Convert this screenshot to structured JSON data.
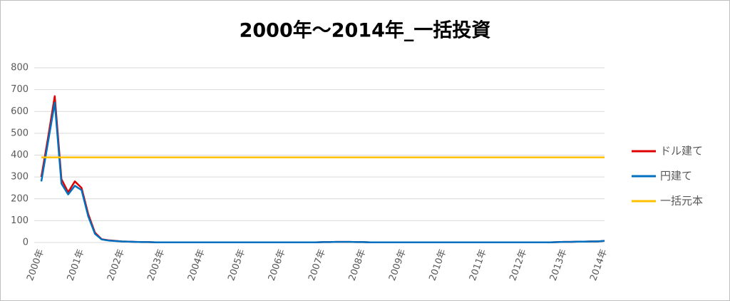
{
  "chart_data": {
    "type": "line",
    "title": "2000年～2014年_一括投資",
    "categories": [
      "2000年",
      null,
      null,
      null,
      null,
      null,
      "2001年",
      null,
      null,
      null,
      null,
      null,
      "2002年",
      null,
      null,
      null,
      null,
      null,
      "2003年",
      null,
      null,
      null,
      null,
      null,
      "2004年",
      null,
      null,
      null,
      null,
      null,
      "2005年",
      null,
      null,
      null,
      null,
      null,
      "2006年",
      null,
      null,
      null,
      null,
      null,
      "2007年",
      null,
      null,
      null,
      null,
      null,
      "2008年",
      null,
      null,
      null,
      null,
      null,
      "2009年",
      null,
      null,
      null,
      null,
      null,
      "2010年",
      null,
      null,
      null,
      null,
      null,
      "2011年",
      null,
      null,
      null,
      null,
      null,
      "2012年",
      null,
      null,
      null,
      null,
      null,
      "2013年",
      null,
      null,
      null,
      null,
      null,
      "2014年"
    ],
    "series": [
      {
        "name": "ドル建て",
        "color": "#e00000",
        "values": [
          300,
          480,
          670,
          290,
          230,
          280,
          250,
          130,
          45,
          15,
          10,
          8,
          5,
          4,
          3,
          2,
          2,
          1,
          1,
          1,
          1,
          1,
          1,
          1,
          1,
          1,
          1,
          1,
          1,
          1,
          1,
          1,
          1,
          1,
          1,
          1,
          1,
          1,
          1,
          1,
          1,
          1,
          2,
          2,
          3,
          3,
          3,
          2,
          2,
          1,
          1,
          1,
          1,
          1,
          1,
          1,
          1,
          1,
          1,
          1,
          1,
          1,
          1,
          1,
          1,
          1,
          1,
          1,
          1,
          1,
          1,
          1,
          1,
          1,
          1,
          1,
          1,
          2,
          3,
          3,
          4,
          4,
          5,
          5,
          8
        ]
      },
      {
        "name": "円建て",
        "color": "#0070c0",
        "values": [
          280,
          460,
          640,
          270,
          220,
          260,
          240,
          120,
          40,
          14,
          9,
          7,
          5,
          4,
          3,
          2,
          2,
          1,
          1,
          1,
          1,
          1,
          1,
          1,
          1,
          1,
          1,
          1,
          1,
          1,
          1,
          1,
          1,
          1,
          1,
          1,
          1,
          1,
          1,
          1,
          1,
          1,
          2,
          2,
          3,
          3,
          3,
          2,
          2,
          1,
          1,
          1,
          1,
          1,
          1,
          1,
          1,
          1,
          1,
          1,
          1,
          1,
          1,
          1,
          1,
          1,
          1,
          1,
          1,
          1,
          1,
          1,
          1,
          1,
          1,
          1,
          1,
          2,
          3,
          3,
          4,
          4,
          5,
          5,
          8
        ]
      },
      {
        "name": "一括元本",
        "color": "#ffc000",
        "values": [
          390,
          390,
          390,
          390,
          390,
          390,
          390,
          390,
          390,
          390,
          390,
          390,
          390,
          390,
          390,
          390,
          390,
          390,
          390,
          390,
          390,
          390,
          390,
          390,
          390,
          390,
          390,
          390,
          390,
          390,
          390,
          390,
          390,
          390,
          390,
          390,
          390,
          390,
          390,
          390,
          390,
          390,
          390,
          390,
          390,
          390,
          390,
          390,
          390,
          390,
          390,
          390,
          390,
          390,
          390,
          390,
          390,
          390,
          390,
          390,
          390,
          390,
          390,
          390,
          390,
          390,
          390,
          390,
          390,
          390,
          390,
          390,
          390,
          390,
          390,
          390,
          390,
          390,
          390,
          390,
          390,
          390,
          390,
          390,
          390
        ]
      }
    ],
    "ylim": [
      0,
      800
    ],
    "yticks": [
      0,
      100,
      200,
      300,
      400,
      500,
      600,
      700,
      800
    ],
    "grid": true,
    "legend": "right"
  }
}
